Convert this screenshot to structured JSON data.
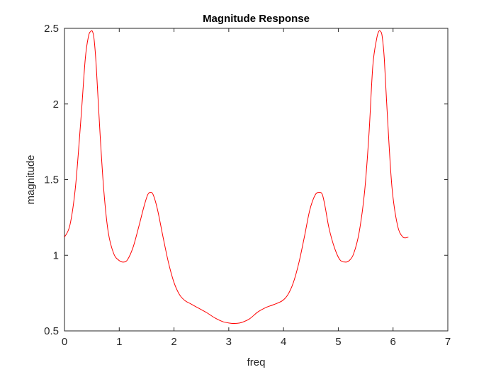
{
  "chart_data": {
    "type": "line",
    "title": "Magnitude Response",
    "xlabel": "freq",
    "ylabel": "magnitude",
    "xlim": [
      0,
      7
    ],
    "ylim": [
      0.5,
      2.5
    ],
    "xticks": [
      0,
      1,
      2,
      3,
      4,
      5,
      6,
      7
    ],
    "xtick_labels": [
      "0",
      "1",
      "2",
      "3",
      "4",
      "5",
      "6",
      "7"
    ],
    "yticks": [
      0.5,
      1,
      1.5,
      2,
      2.5
    ],
    "ytick_labels": [
      "0.5",
      "1",
      "1.5",
      "2",
      "2.5"
    ],
    "grid": false,
    "series": [
      {
        "color": "#ff0000",
        "x": [
          0,
          0.1,
          0.2,
          0.3,
          0.38,
          0.44,
          0.48,
          0.51,
          0.54,
          0.58,
          0.65,
          0.72,
          0.8,
          0.9,
          1.0,
          1.08,
          1.15,
          1.25,
          1.35,
          1.45,
          1.52,
          1.57,
          1.62,
          1.7,
          1.8,
          1.9,
          2.0,
          2.1,
          2.2,
          2.3,
          2.45,
          2.6,
          2.75,
          2.9,
          3.05,
          3.14,
          3.23,
          3.38,
          3.53,
          3.68,
          3.83,
          3.98,
          4.08,
          4.18,
          4.28,
          4.38,
          4.48,
          4.58,
          4.66,
          4.71,
          4.76,
          4.83,
          4.93,
          5.03,
          5.13,
          5.2,
          5.28,
          5.38,
          5.48,
          5.56,
          5.63,
          5.7,
          5.74,
          5.77,
          5.8,
          5.84,
          5.9,
          5.98,
          6.08,
          6.18,
          6.28
        ],
        "y": [
          1.12,
          1.2,
          1.45,
          1.9,
          2.3,
          2.45,
          2.48,
          2.48,
          2.43,
          2.25,
          1.8,
          1.42,
          1.15,
          1.01,
          0.965,
          0.955,
          0.97,
          1.05,
          1.18,
          1.32,
          1.4,
          1.415,
          1.4,
          1.3,
          1.12,
          0.95,
          0.82,
          0.74,
          0.7,
          0.68,
          0.65,
          0.62,
          0.585,
          0.56,
          0.55,
          0.55,
          0.555,
          0.58,
          0.625,
          0.655,
          0.675,
          0.7,
          0.74,
          0.82,
          0.95,
          1.12,
          1.3,
          1.4,
          1.415,
          1.4,
          1.32,
          1.18,
          1.05,
          0.97,
          0.955,
          0.965,
          1.01,
          1.15,
          1.42,
          1.8,
          2.25,
          2.43,
          2.48,
          2.48,
          2.45,
          2.3,
          1.9,
          1.45,
          1.2,
          1.12,
          1.12
        ]
      }
    ]
  }
}
